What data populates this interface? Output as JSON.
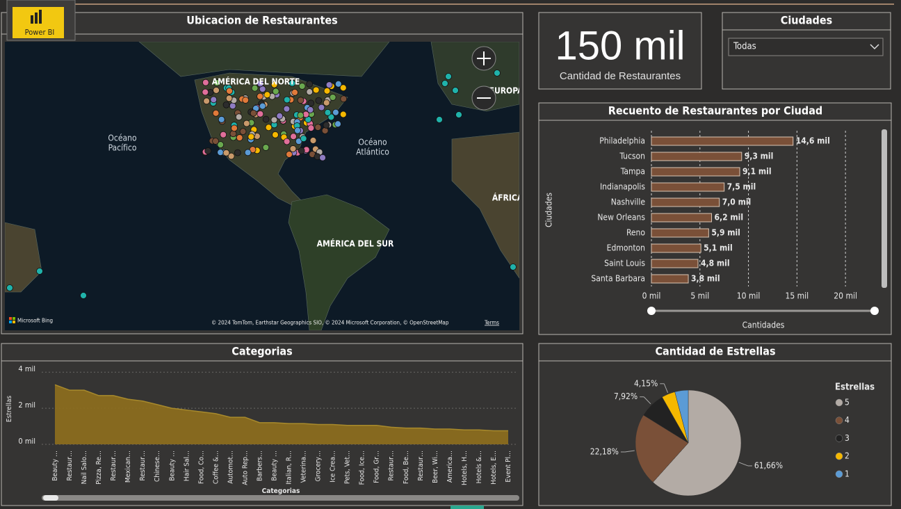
{
  "header": {
    "logo": "Power BI"
  },
  "map": {
    "title": "Ubicacion de Restaurantes",
    "labels": {
      "north_america": "AMÉRICA DEL NORTE",
      "pacific": [
        "Océano",
        "Pacífico"
      ],
      "atlantic": [
        "Océano",
        "Atlántico"
      ],
      "south_america": "AMÉRICA DEL SUR",
      "europe": "EUROPA",
      "africa": "ÁFRICA"
    },
    "provider": "Microsoft Bing",
    "attribution": "© 2024 TomTom, Earthstar Geographics SIO, © 2024 Microsoft Corporation, © OpenStreetMap",
    "terms": "Terms"
  },
  "kpi": {
    "value": "150 mil",
    "label": "Cantidad de Restaurantes"
  },
  "slicer": {
    "title": "Ciudades",
    "selected": "Todas"
  },
  "chart_data": [
    {
      "type": "bar",
      "orientation": "horizontal",
      "title": "Recuento de Restaurantes por Ciudad",
      "x_label": "Cantidades",
      "y_label": "Ciudades",
      "categories": [
        "Philadelphia",
        "Tucson",
        "Tampa",
        "Indianapolis",
        "Nashville",
        "New Orleans",
        "Reno",
        "Edmonton",
        "Saint Louis",
        "Santa Barbara"
      ],
      "values": [
        14.6,
        9.3,
        9.1,
        7.5,
        7.0,
        6.2,
        5.9,
        5.1,
        4.8,
        3.8
      ],
      "value_labels": [
        "14,6 mil",
        "9,3 mil",
        "9,1 mil",
        "7,5 mil",
        "7,0 mil",
        "6,2 mil",
        "5,9 mil",
        "5,1 mil",
        "4,8 mil",
        "3,8 mil"
      ],
      "color": "#7a5038",
      "xlim": [
        0,
        23
      ],
      "xticks": [
        {
          "value": 0,
          "label": "0 mil"
        },
        {
          "value": 5,
          "label": "5 mil"
        },
        {
          "value": 10,
          "label": "10 mil"
        },
        {
          "value": 15,
          "label": "15 mil"
        },
        {
          "value": 20,
          "label": "20 mil"
        }
      ],
      "grid": true
    },
    {
      "type": "area",
      "title": "Categorias",
      "x_label": "Categorias",
      "y_label": "Estrellas",
      "categories": [
        "Beauty …",
        "Restaur…",
        "Nail Salo…",
        "Pizza, Re…",
        "Restaur…",
        "Mexican…",
        "Restaur…",
        "Chinese…",
        "Beauty …",
        "Hair Sal…",
        "Food, Co…",
        "Coffee &…",
        "Automot…",
        "Auto Rep…",
        "Barbers…",
        "Beauty …",
        "Italian, R…",
        "Veterina…",
        "Grocery…",
        "Ice Crea…",
        "Pets, Vet…",
        "Food, Ice…",
        "Food, Gr…",
        "Restaur…",
        "Food, Be…",
        "Restaur…",
        "Beer, Wi…",
        "America…",
        "Hotels, H…",
        "Hotels &…",
        "Hotels, E…",
        "Event Pl…"
      ],
      "values": [
        3.3,
        3.0,
        3.0,
        2.7,
        2.7,
        2.5,
        2.4,
        2.2,
        2.0,
        1.9,
        1.8,
        1.7,
        1.5,
        1.5,
        1.2,
        1.2,
        1.15,
        1.15,
        1.1,
        1.1,
        1.05,
        1.05,
        1.05,
        0.95,
        0.9,
        0.9,
        0.85,
        0.85,
        0.8,
        0.8,
        0.75,
        0.75
      ],
      "color": "#8b6d1f",
      "ylim": [
        0,
        4.2
      ],
      "yticks": [
        {
          "value": 0,
          "label": "0 mil"
        },
        {
          "value": 2,
          "label": "2 mil"
        },
        {
          "value": 4,
          "label": "4 mil"
        }
      ],
      "grid": true
    },
    {
      "type": "pie",
      "title": "Cantidad de Estrellas",
      "legend_title": "Estrellas",
      "legend": "right",
      "series": [
        {
          "name": "5",
          "color": "#b3aba5",
          "values": [
            61.66
          ],
          "value_labels": [
            "61,66%"
          ]
        },
        {
          "name": "4",
          "color": "#7a5038",
          "values": [
            22.18
          ],
          "value_labels": [
            "22,18%"
          ]
        },
        {
          "name": "3",
          "color": "#222222",
          "values": [
            7.92
          ],
          "value_labels": [
            "7,92%"
          ]
        },
        {
          "name": "2",
          "color": "#f5b800",
          "values": [
            4.15
          ],
          "value_labels": [
            "4,15%"
          ]
        },
        {
          "name": "1",
          "color": "#5b9bd5",
          "values": [
            4.09
          ],
          "value_labels": [
            null
          ]
        }
      ]
    }
  ]
}
